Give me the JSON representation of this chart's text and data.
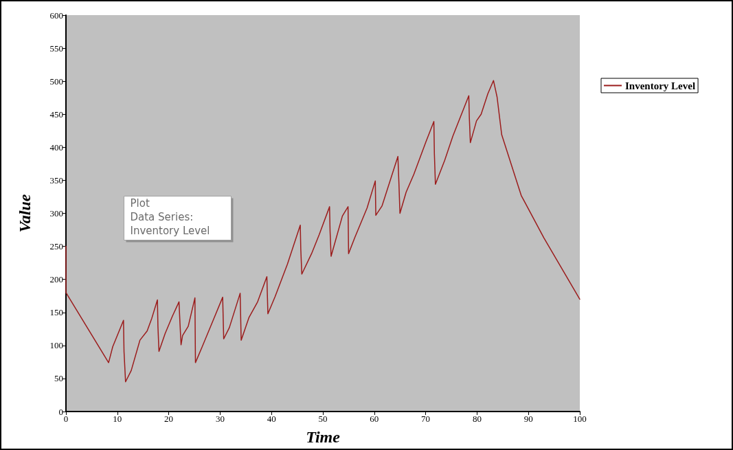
{
  "chart_data": {
    "type": "line",
    "xlabel": "Time",
    "ylabel": "Value",
    "xlim": [
      0,
      100
    ],
    "xticks": [
      0,
      10,
      20,
      30,
      40,
      50,
      60,
      70,
      80,
      90,
      100
    ],
    "ylim": [
      0,
      600
    ],
    "yticks": [
      0,
      50,
      100,
      150,
      200,
      250,
      300,
      350,
      400,
      450,
      500,
      550,
      600
    ],
    "grid": false,
    "legend": "top right",
    "marker": "none",
    "line_style": "solid",
    "annotations": [
      "Plot",
      "Data Series:",
      "Inventory Level"
    ],
    "series": [
      {
        "name": "Inventory Level",
        "color": "#9b1c1c",
        "x": [
          0,
          0,
          8.3,
          9.1,
          11.2,
          11.3,
          11.6,
          12.7,
          14.4,
          15.8,
          16.7,
          17.8,
          17.9,
          18.1,
          19.3,
          20.7,
          22,
          22.2,
          22.4,
          22.7,
          23.8,
          25.1,
          25.2,
          26.4,
          28.7,
          30.5,
          30.7,
          31.8,
          33.9,
          34.1,
          35.6,
          37.3,
          39.1,
          39.3,
          40.7,
          43.1,
          45.6,
          45.7,
          45.9,
          47.8,
          49.3,
          51.3,
          51.4,
          51.6,
          53.8,
          54.9,
          55,
          56.2,
          58.6,
          60.2,
          60.3,
          61.5,
          64.6,
          64.8,
          65,
          66.2,
          67.7,
          70,
          71.6,
          71.7,
          71.9,
          73.7,
          75.3,
          78.4,
          78.5,
          78.7,
          79.9,
          80.8,
          82.1,
          83.2,
          83.9,
          84.8,
          88.6,
          93,
          100
        ],
        "values": [
          250,
          180,
          74,
          98,
          138,
          91,
          45,
          62,
          108,
          122,
          141,
          169,
          129,
          91,
          118,
          144,
          166,
          132,
          101,
          115,
          129,
          172,
          74,
          96,
          139,
          173,
          110,
          127,
          179,
          108,
          142,
          166,
          204,
          148,
          174,
          223,
          282,
          246,
          208,
          239,
          268,
          310,
          273,
          235,
          296,
          310,
          239,
          263,
          308,
          349,
          297,
          311,
          386,
          345,
          300,
          332,
          359,
          407,
          439,
          390,
          344,
          380,
          417,
          478,
          445,
          407,
          440,
          450,
          481,
          501,
          476,
          419,
          327,
          263,
          170
        ]
      }
    ]
  }
}
